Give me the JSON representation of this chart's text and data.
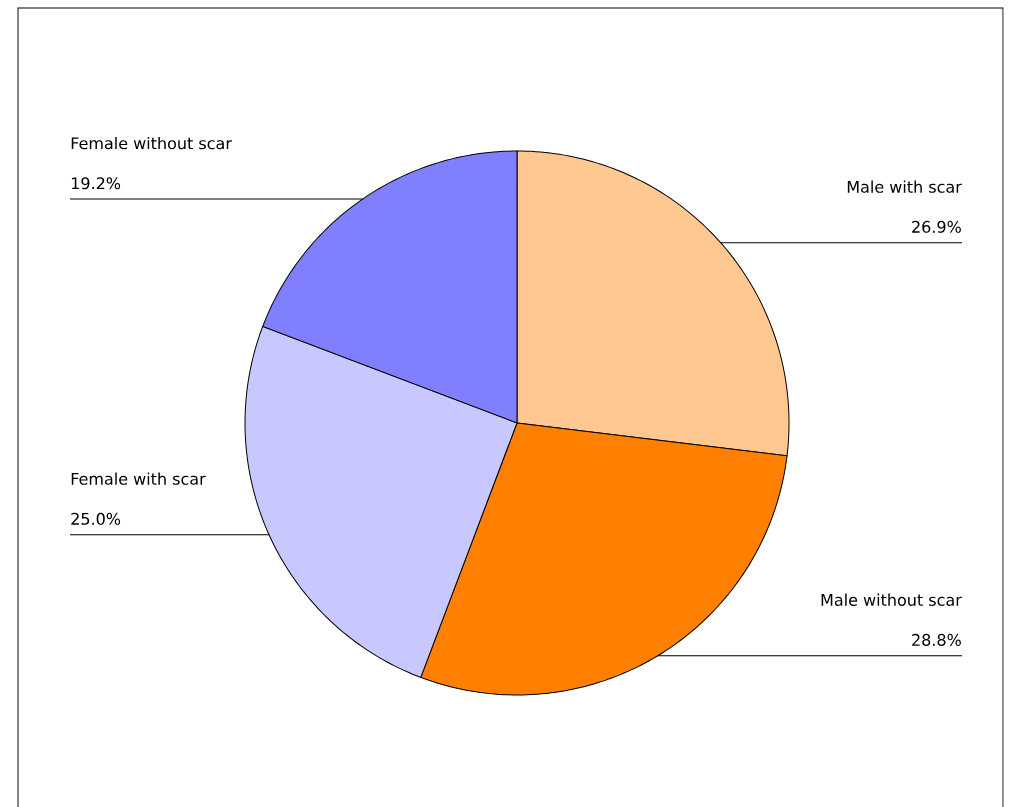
{
  "chart_data": {
    "type": "pie",
    "categories": [
      "Male with scar",
      "Male without scar",
      "Female with scar",
      "Female without scar"
    ],
    "values": [
      26.9,
      28.8,
      25.0,
      19.2
    ],
    "colors": [
      "#ffc890",
      "#ff8000",
      "#c8c8ff",
      "#8080ff"
    ],
    "value_labels": [
      "26.9%",
      "28.8%",
      "25.0%",
      "19.2%"
    ]
  }
}
